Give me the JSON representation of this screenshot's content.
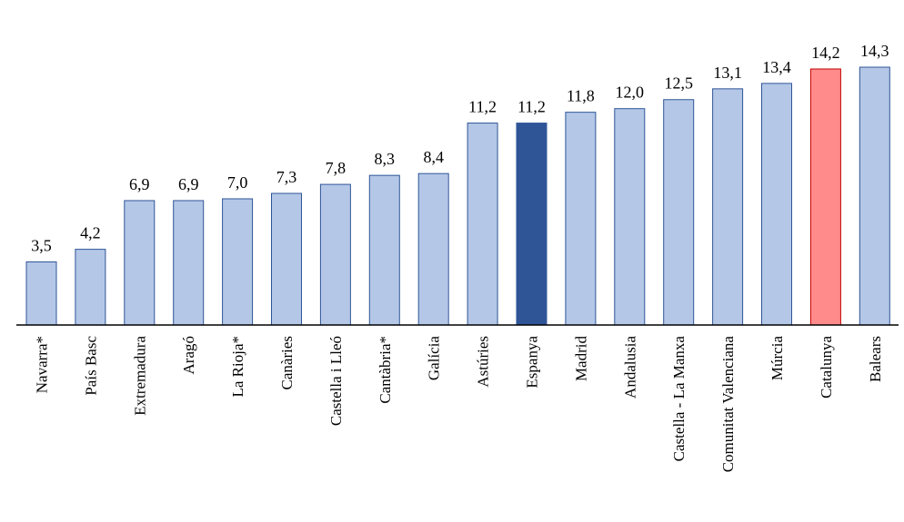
{
  "chart_data": {
    "type": "bar",
    "categories": [
      "Navarra*",
      "País Basc",
      "Extremadura",
      "Aragó",
      "La Rioja*",
      "Canàries",
      "Castella i Lleó",
      "Cantàbria*",
      "Galícia",
      "Astúries",
      "Espanya",
      "Madrid",
      "Andalusia",
      "Castella - La Manxa",
      "Comunitat Valenciana",
      "Múrcia",
      "Catalunya",
      "Balears"
    ],
    "values": [
      3.5,
      4.2,
      6.9,
      6.9,
      7.0,
      7.3,
      7.8,
      8.3,
      8.4,
      11.2,
      11.2,
      11.8,
      12.0,
      12.5,
      13.1,
      13.4,
      14.2,
      14.3
    ],
    "value_labels": [
      "3,5",
      "4,2",
      "6,9",
      "6,9",
      "7,0",
      "7,3",
      "7,8",
      "8,3",
      "8,4",
      "11,2",
      "11,2",
      "11,8",
      "12,0",
      "12,5",
      "13,1",
      "13,4",
      "14,2",
      "14,3"
    ],
    "ylim": [
      0,
      14.3
    ],
    "grid": false,
    "legend": "none",
    "colors": {
      "default_fill": "#b4c7e7",
      "default_stroke": "#2f5597",
      "highlight_fill": "#2f5597",
      "highlight_stroke": "#2f5597",
      "catalunya_fill": "#ff8b8b",
      "catalunya_stroke": "#c00000",
      "axis": "#000000"
    },
    "highlight": {
      "Espanya": "highlight",
      "Catalunya": "catalunya"
    }
  }
}
